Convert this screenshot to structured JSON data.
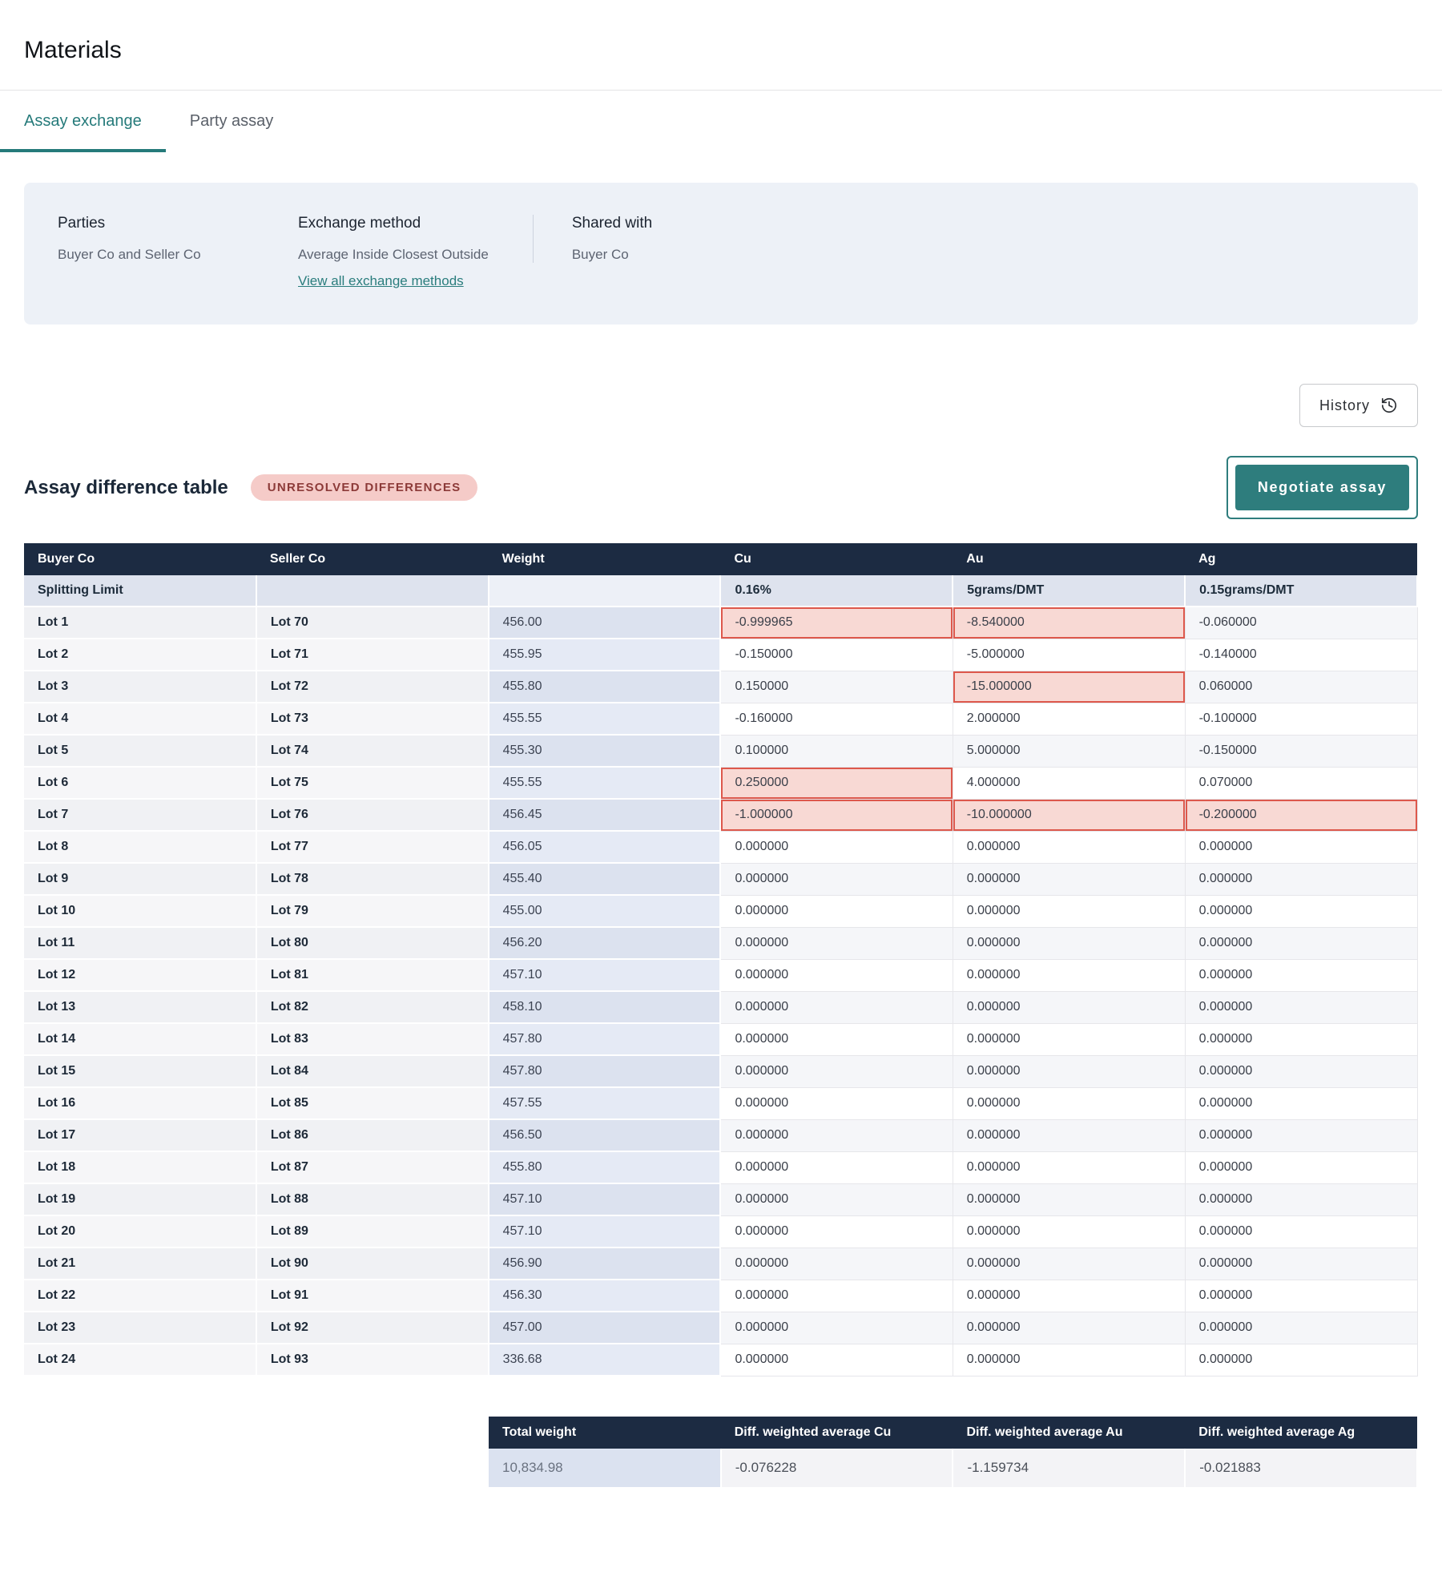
{
  "page": {
    "title": "Materials"
  },
  "tabs": {
    "assay_exchange": "Assay exchange",
    "party_assay": "Party assay"
  },
  "info_panel": {
    "parties_label": "Parties",
    "parties_value": "Buyer Co and Seller Co",
    "exchange_method_label": "Exchange method",
    "exchange_method_value": "Average Inside Closest Outside",
    "exchange_method_link": "View all exchange methods",
    "shared_with_label": "Shared with",
    "shared_with_value": "Buyer Co"
  },
  "actions": {
    "history": "History",
    "negotiate": "Negotiate assay"
  },
  "section": {
    "title": "Assay difference table",
    "badge": "UNRESOLVED DIFFERENCES"
  },
  "table": {
    "headers": {
      "buyer": "Buyer Co",
      "seller": "Seller Co",
      "weight": "Weight",
      "cu": "Cu",
      "au": "Au",
      "ag": "Ag"
    },
    "splitting_limit": {
      "label": "Splitting Limit",
      "cu": "0.16%",
      "au": "5grams/DMT",
      "ag": "0.15grams/DMT"
    },
    "rows": [
      {
        "buyer": "Lot 1",
        "seller": "Lot 70",
        "weight": "456.00",
        "cu": "-0.999965",
        "au": "-8.540000",
        "ag": "-0.060000",
        "hl": [
          "cu",
          "au"
        ]
      },
      {
        "buyer": "Lot 2",
        "seller": "Lot 71",
        "weight": "455.95",
        "cu": "-0.150000",
        "au": "-5.000000",
        "ag": "-0.140000",
        "hl": []
      },
      {
        "buyer": "Lot 3",
        "seller": "Lot 72",
        "weight": "455.80",
        "cu": "0.150000",
        "au": "-15.000000",
        "ag": "0.060000",
        "hl": [
          "au"
        ]
      },
      {
        "buyer": "Lot 4",
        "seller": "Lot 73",
        "weight": "455.55",
        "cu": "-0.160000",
        "au": "2.000000",
        "ag": "-0.100000",
        "hl": []
      },
      {
        "buyer": "Lot 5",
        "seller": "Lot 74",
        "weight": "455.30",
        "cu": "0.100000",
        "au": "5.000000",
        "ag": "-0.150000",
        "hl": []
      },
      {
        "buyer": "Lot 6",
        "seller": "Lot 75",
        "weight": "455.55",
        "cu": "0.250000",
        "au": "4.000000",
        "ag": "0.070000",
        "hl": [
          "cu"
        ]
      },
      {
        "buyer": "Lot 7",
        "seller": "Lot 76",
        "weight": "456.45",
        "cu": "-1.000000",
        "au": "-10.000000",
        "ag": "-0.200000",
        "hl": [
          "cu",
          "au",
          "ag"
        ]
      },
      {
        "buyer": "Lot 8",
        "seller": "Lot 77",
        "weight": "456.05",
        "cu": "0.000000",
        "au": "0.000000",
        "ag": "0.000000",
        "hl": []
      },
      {
        "buyer": "Lot 9",
        "seller": "Lot 78",
        "weight": "455.40",
        "cu": "0.000000",
        "au": "0.000000",
        "ag": "0.000000",
        "hl": []
      },
      {
        "buyer": "Lot 10",
        "seller": "Lot 79",
        "weight": "455.00",
        "cu": "0.000000",
        "au": "0.000000",
        "ag": "0.000000",
        "hl": []
      },
      {
        "buyer": "Lot 11",
        "seller": "Lot 80",
        "weight": "456.20",
        "cu": "0.000000",
        "au": "0.000000",
        "ag": "0.000000",
        "hl": []
      },
      {
        "buyer": "Lot 12",
        "seller": "Lot 81",
        "weight": "457.10",
        "cu": "0.000000",
        "au": "0.000000",
        "ag": "0.000000",
        "hl": []
      },
      {
        "buyer": "Lot 13",
        "seller": "Lot 82",
        "weight": "458.10",
        "cu": "0.000000",
        "au": "0.000000",
        "ag": "0.000000",
        "hl": []
      },
      {
        "buyer": "Lot 14",
        "seller": "Lot 83",
        "weight": "457.80",
        "cu": "0.000000",
        "au": "0.000000",
        "ag": "0.000000",
        "hl": []
      },
      {
        "buyer": "Lot 15",
        "seller": "Lot 84",
        "weight": "457.80",
        "cu": "0.000000",
        "au": "0.000000",
        "ag": "0.000000",
        "hl": []
      },
      {
        "buyer": "Lot 16",
        "seller": "Lot 85",
        "weight": "457.55",
        "cu": "0.000000",
        "au": "0.000000",
        "ag": "0.000000",
        "hl": []
      },
      {
        "buyer": "Lot 17",
        "seller": "Lot 86",
        "weight": "456.50",
        "cu": "0.000000",
        "au": "0.000000",
        "ag": "0.000000",
        "hl": []
      },
      {
        "buyer": "Lot 18",
        "seller": "Lot 87",
        "weight": "455.80",
        "cu": "0.000000",
        "au": "0.000000",
        "ag": "0.000000",
        "hl": []
      },
      {
        "buyer": "Lot 19",
        "seller": "Lot 88",
        "weight": "457.10",
        "cu": "0.000000",
        "au": "0.000000",
        "ag": "0.000000",
        "hl": []
      },
      {
        "buyer": "Lot 20",
        "seller": "Lot 89",
        "weight": "457.10",
        "cu": "0.000000",
        "au": "0.000000",
        "ag": "0.000000",
        "hl": []
      },
      {
        "buyer": "Lot 21",
        "seller": "Lot 90",
        "weight": "456.90",
        "cu": "0.000000",
        "au": "0.000000",
        "ag": "0.000000",
        "hl": []
      },
      {
        "buyer": "Lot 22",
        "seller": "Lot 91",
        "weight": "456.30",
        "cu": "0.000000",
        "au": "0.000000",
        "ag": "0.000000",
        "hl": []
      },
      {
        "buyer": "Lot 23",
        "seller": "Lot 92",
        "weight": "457.00",
        "cu": "0.000000",
        "au": "0.000000",
        "ag": "0.000000",
        "hl": []
      },
      {
        "buyer": "Lot 24",
        "seller": "Lot 93",
        "weight": "336.68",
        "cu": "0.000000",
        "au": "0.000000",
        "ag": "0.000000",
        "hl": []
      }
    ]
  },
  "summary": {
    "headers": [
      "Total weight",
      "Diff. weighted average Cu",
      "Diff. weighted average Au",
      "Diff. weighted average Ag"
    ],
    "values": [
      "10,834.98",
      "-0.076228",
      "-1.159734",
      "-0.021883"
    ]
  },
  "colors": {
    "accent_teal": "#2e7d7d",
    "header_navy": "#1c2b42",
    "badge_bg": "#f5cbc8",
    "badge_text": "#8c3a38",
    "highlight_bg": "#f8d9d4",
    "highlight_border": "#dd584c",
    "panel_bg": "#edf1f7",
    "weight_col_bg": "#dfe5f1"
  }
}
